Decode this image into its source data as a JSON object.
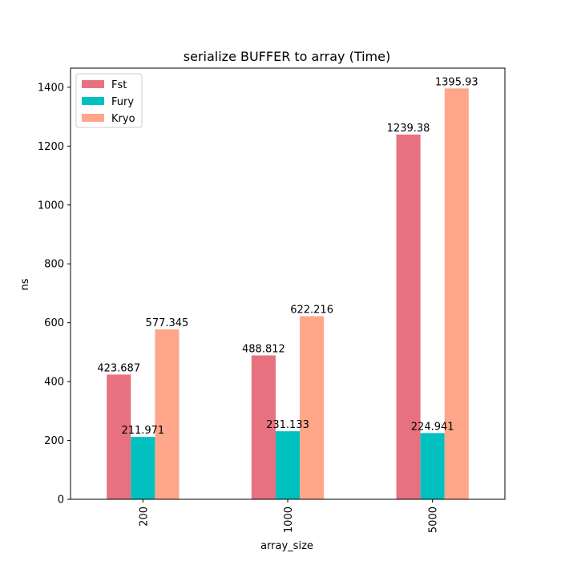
{
  "chart_data": {
    "type": "bar",
    "title": "serialize BUFFER to array (Time)",
    "xlabel": "array_size",
    "ylabel": "ns",
    "categories": [
      "200",
      "1000",
      "5000"
    ],
    "series": [
      {
        "name": "Fst",
        "color": "#e8717f",
        "values": [
          423.687,
          488.812,
          1239.38
        ]
      },
      {
        "name": "Fury",
        "color": "#00c0c0",
        "values": [
          211.971,
          231.133,
          224.941
        ]
      },
      {
        "name": "Kryo",
        "color": "#ffa68a",
        "values": [
          577.345,
          622.216,
          1395.93
        ]
      }
    ],
    "value_labels": [
      [
        "423.687",
        "488.812",
        "1239.38"
      ],
      [
        "211.971",
        "231.133",
        "224.941"
      ],
      [
        "577.345",
        "622.216",
        "1395.93"
      ]
    ],
    "ylim": [
      0,
      1465
    ],
    "yticks": [
      0,
      200,
      400,
      600,
      800,
      1000,
      1200,
      1400
    ],
    "legend_position": "top-left",
    "grid": false
  }
}
